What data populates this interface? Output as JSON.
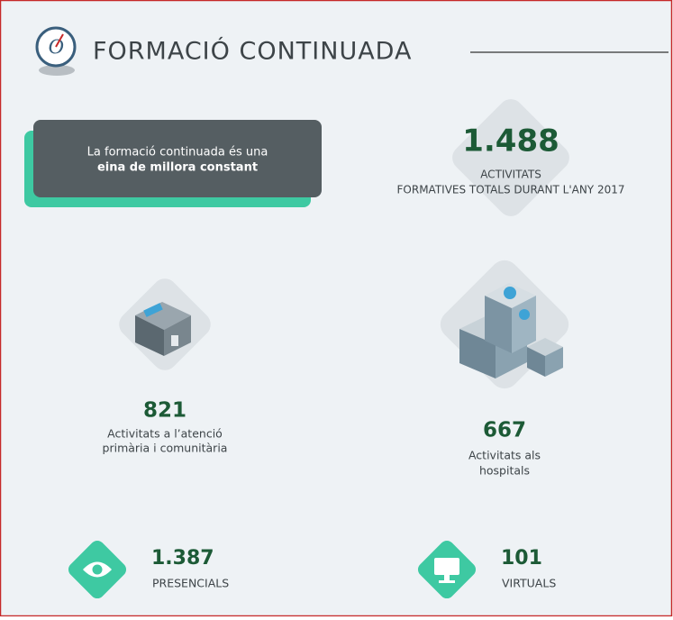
{
  "header": {
    "title": "FORMACIÓ CONTINUADA"
  },
  "callout": {
    "line1": "La formació continuada és una",
    "line2": "eina de millora constant"
  },
  "total": {
    "value": "1.488",
    "label1": "ACTIVITATS",
    "label2": "FORMATIVES TOTALS DURANT L'ANY 2017"
  },
  "primary_care": {
    "value": "821",
    "label1": "Activitats a l’atenció",
    "label2": "primària i comunitària"
  },
  "hospitals": {
    "value": "667",
    "label1": "Activitats als",
    "label2": "hospitals"
  },
  "in_person": {
    "value": "1.387",
    "label": "PRESENCIALS"
  },
  "virtual": {
    "value": "101",
    "label": "VIRTUALS"
  }
}
